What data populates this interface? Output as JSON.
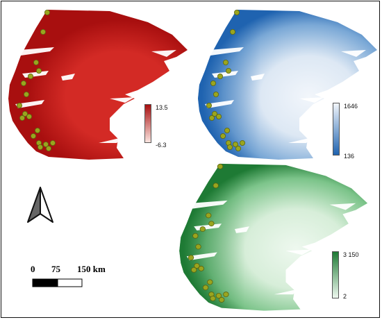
{
  "maps": [
    {
      "id": "red",
      "legend": {
        "max": "13.5",
        "min": "-6.3"
      },
      "colors": {
        "dark": "#a80f0f",
        "mid": "#d32a25",
        "light": "#f0b3a6",
        "pale": "#fbe5e0"
      }
    },
    {
      "id": "blue",
      "legend": {
        "max": "1646",
        "min": "136"
      },
      "colors": {
        "dark": "#1f63b0",
        "mid": "#7aa8d6",
        "light": "#dde8f4",
        "pale": "#f2f6fb"
      }
    },
    {
      "id": "green",
      "legend": {
        "max": "3 150",
        "min": "2"
      },
      "colors": {
        "dark": "#1e7a34",
        "mid": "#7cc48a",
        "light": "#d7eed9",
        "pale": "#eef8ef"
      }
    }
  ],
  "scale_bar": {
    "labels": [
      "0",
      "75",
      "150 km"
    ]
  },
  "north_arrow": {
    "icon": "north-arrow-icon"
  },
  "site_marker_color": "#9aa51f"
}
